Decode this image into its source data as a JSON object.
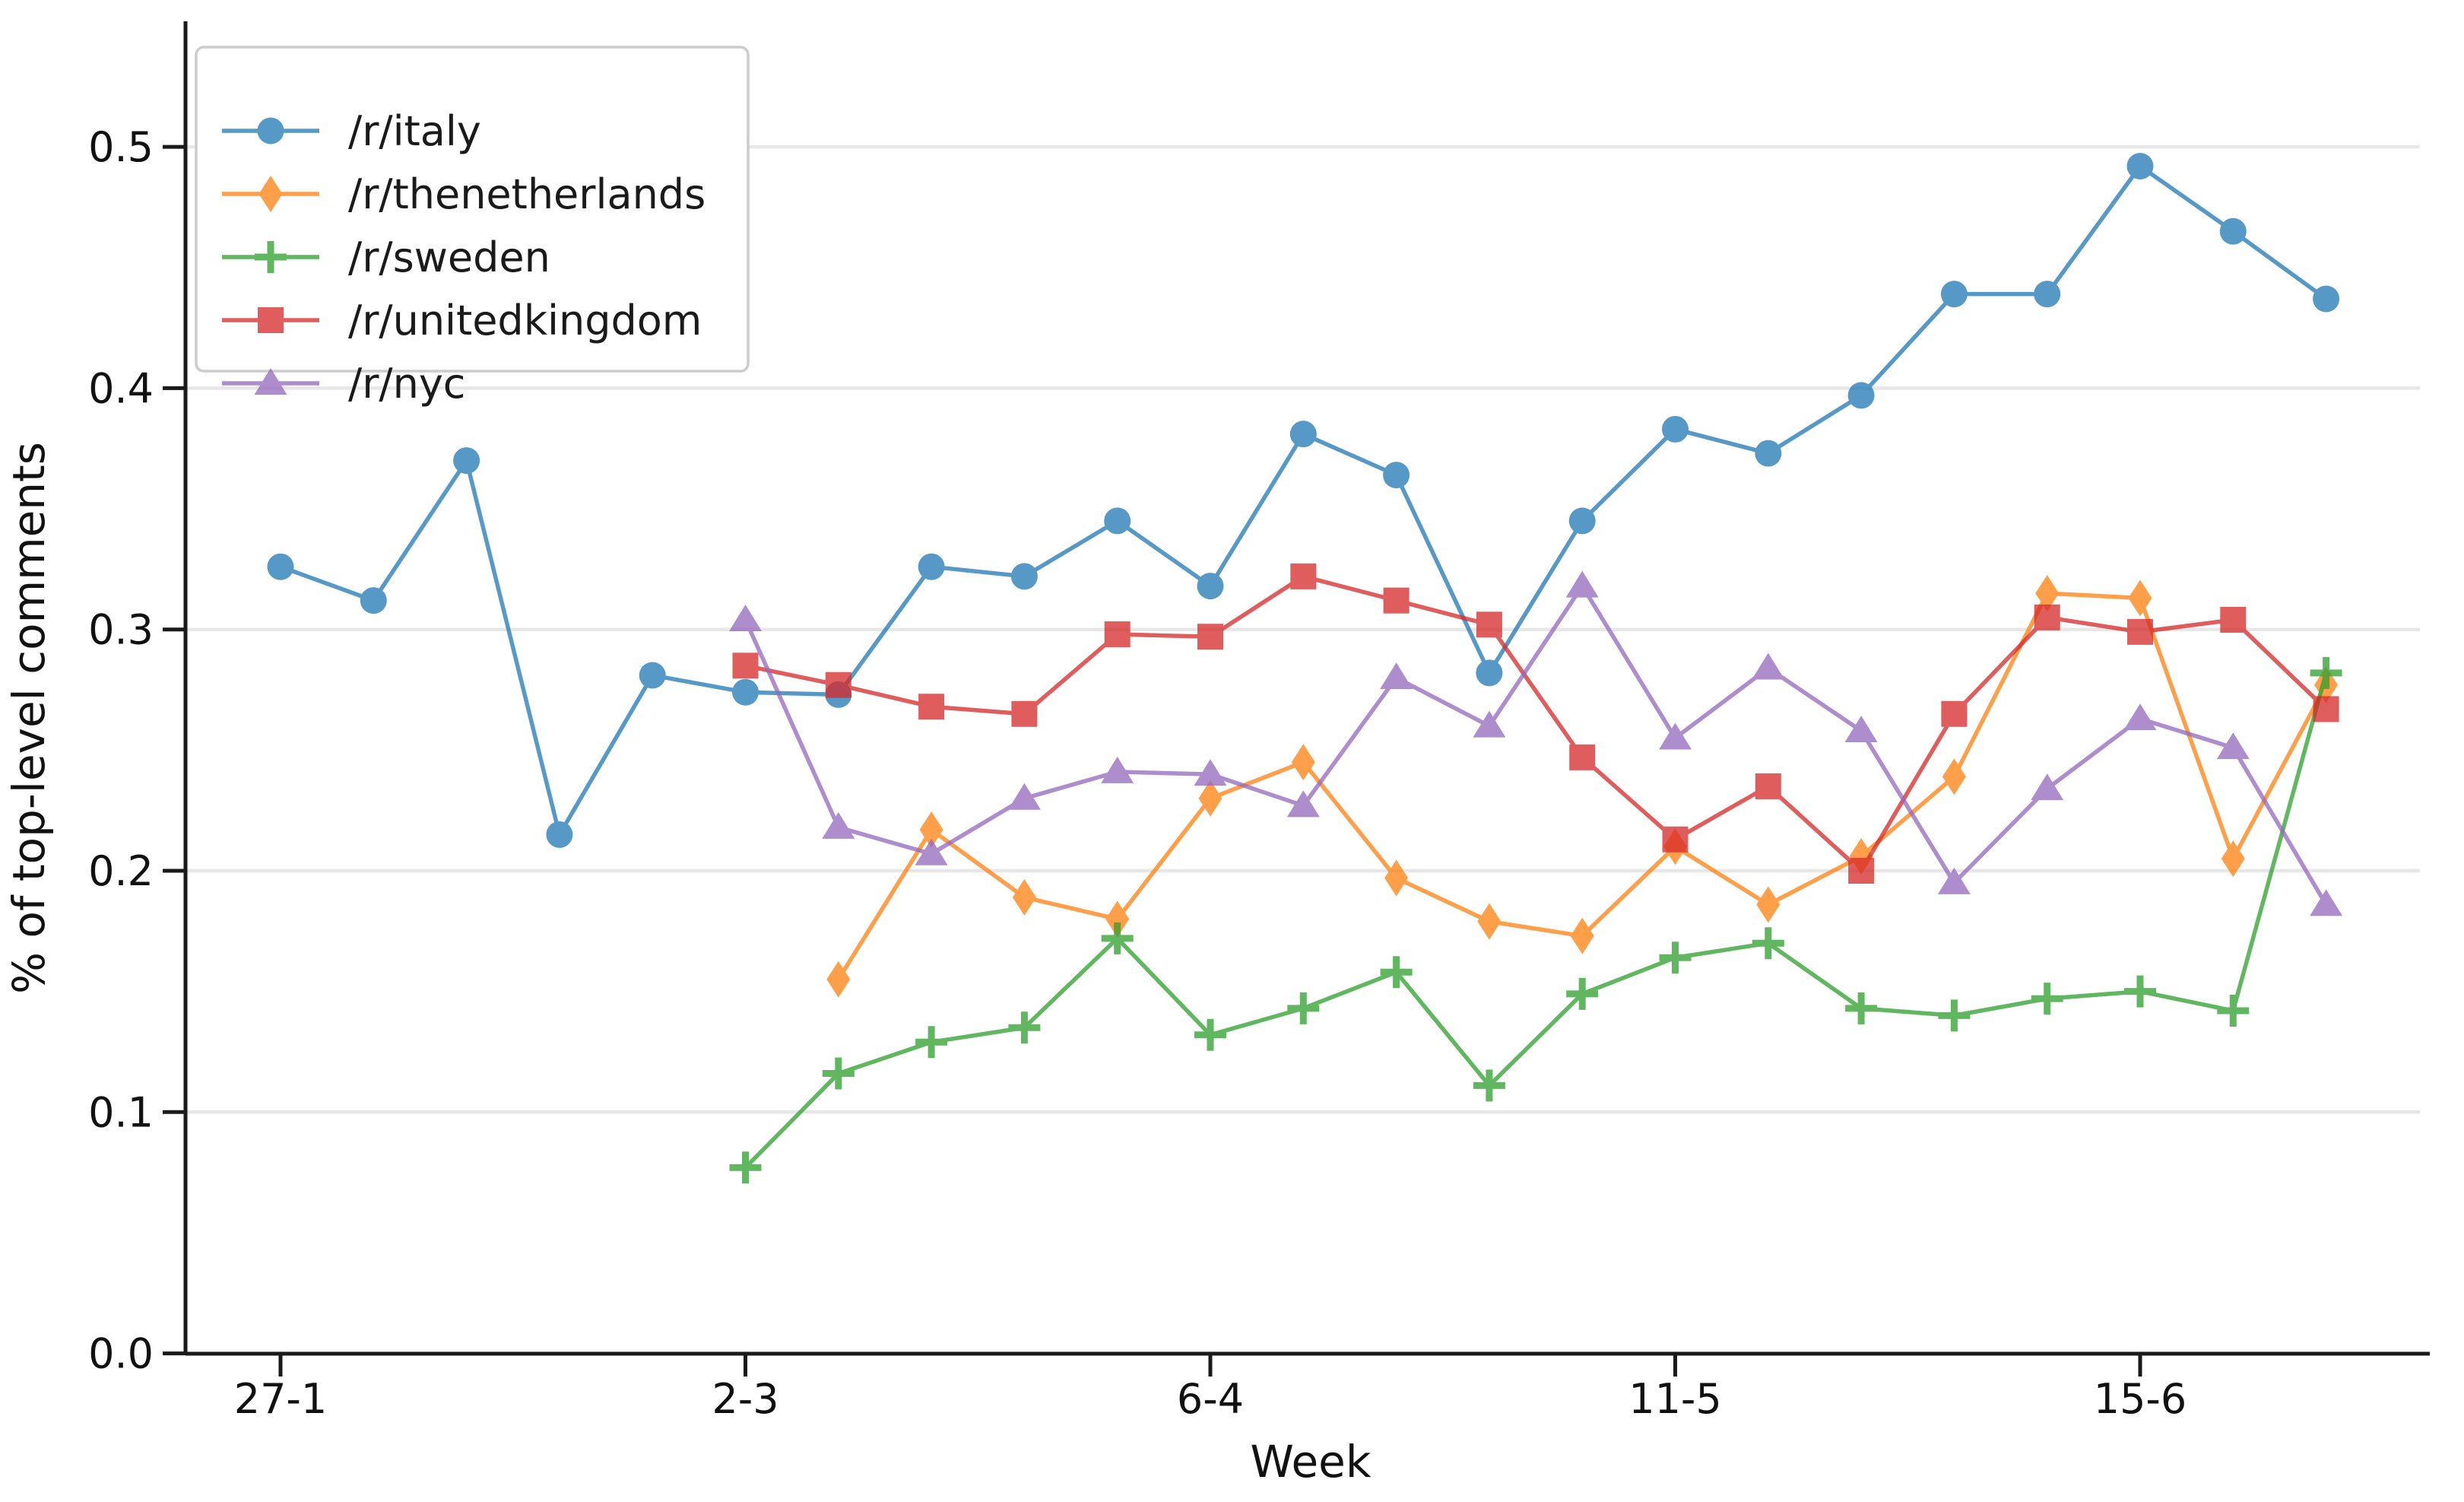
{
  "chart_data": {
    "type": "line",
    "title": "",
    "xlabel": "Week",
    "ylabel": "% of top-level comments",
    "x_unit": "weekly data points; week index 0 = first x tick",
    "x_tick_week_indices": [
      0,
      5,
      10,
      15,
      20
    ],
    "x_tick_labels": [
      "27-1",
      "2-3",
      "6-4",
      "11-5",
      "15-6"
    ],
    "y_tick_labels": [
      "0.0",
      "0.1",
      "0.2",
      "0.3",
      "0.4",
      "0.5"
    ],
    "y_ticks": [
      0.0,
      0.1,
      0.2,
      0.3,
      0.4,
      0.5
    ],
    "ylim": [
      0.0,
      0.55
    ],
    "xlim_weeks": [
      -1,
      23
    ],
    "grid": "horizontal-only",
    "grid_color": "#e7e7e7",
    "legend_position": "upper-left",
    "series_opacity": 0.75,
    "series": [
      {
        "name": "/r/italy",
        "color": "#1f77b4",
        "marker": "circle",
        "start_week": 0,
        "values": [
          0.326,
          0.312,
          0.37,
          0.215,
          0.281,
          0.274,
          0.273,
          0.326,
          0.322,
          0.345,
          0.318,
          0.381,
          0.364,
          0.282,
          0.345,
          0.383,
          0.373,
          0.397,
          0.439,
          0.439,
          0.492,
          0.465,
          0.437
        ]
      },
      {
        "name": "/r/thenetherlands",
        "color": "#ff7f0e",
        "marker": "thin-diamond",
        "start_week": 6,
        "values": [
          0.155,
          0.217,
          0.189,
          0.18,
          0.23,
          0.245,
          0.197,
          0.179,
          0.173,
          0.21,
          0.186,
          0.206,
          0.239,
          0.315,
          0.313,
          0.205,
          0.277
        ]
      },
      {
        "name": "/r/sweden",
        "color": "#2ca02c",
        "marker": "plus",
        "start_week": 5,
        "values": [
          0.077,
          0.116,
          0.129,
          0.135,
          0.172,
          0.132,
          0.143,
          0.158,
          0.111,
          0.149,
          0.164,
          0.17,
          0.143,
          0.14,
          0.147,
          0.15,
          0.142,
          0.282
        ]
      },
      {
        "name": "/r/unitedkingdom",
        "color": "#d62728",
        "marker": "square",
        "start_week": 5,
        "values": [
          0.285,
          0.277,
          0.268,
          0.265,
          0.298,
          0.297,
          0.322,
          0.312,
          0.302,
          0.247,
          0.213,
          0.235,
          0.2,
          0.265,
          0.305,
          0.299,
          0.304,
          0.267
        ]
      },
      {
        "name": "/r/nyc",
        "color": "#9467bd",
        "marker": "triangle-up",
        "start_week": 5,
        "values": [
          0.304,
          0.218,
          0.207,
          0.23,
          0.241,
          0.24,
          0.227,
          0.28,
          0.26,
          0.318,
          0.255,
          0.284,
          0.258,
          0.195,
          0.234,
          0.263,
          0.251,
          0.186
        ]
      }
    ]
  }
}
